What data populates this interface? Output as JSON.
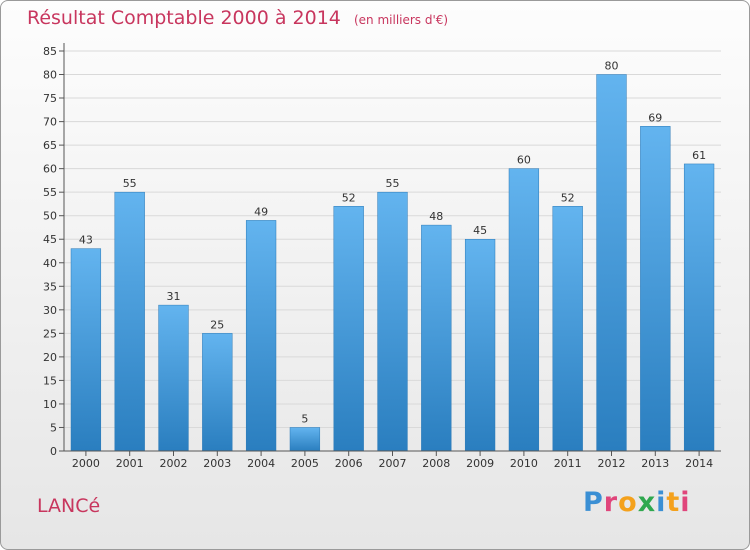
{
  "header": {
    "title": "Résultat Comptable 2000 à 2014",
    "subtitle": "(en milliers d'€)"
  },
  "footer": {
    "commune": "LANCé",
    "brand": "Proxiti"
  },
  "colors": {
    "title": "#c8365e",
    "bar_top": "#63b4ef",
    "bar_bottom": "#2a7ebf",
    "grid": "#d9d9d9"
  },
  "chart_data": {
    "type": "bar",
    "title": "Résultat Comptable 2000 à 2014",
    "subtitle": "(en milliers d'€)",
    "xlabel": "",
    "ylabel": "",
    "ylim": [
      0,
      85
    ],
    "ytick_step": 5,
    "grid": true,
    "categories": [
      "2000",
      "2001",
      "2002",
      "2003",
      "2004",
      "2005",
      "2006",
      "2007",
      "2008",
      "2009",
      "2010",
      "2011",
      "2012",
      "2013",
      "2014"
    ],
    "values": [
      43,
      55,
      31,
      25,
      49,
      5,
      52,
      55,
      48,
      45,
      60,
      52,
      80,
      69,
      61
    ]
  }
}
